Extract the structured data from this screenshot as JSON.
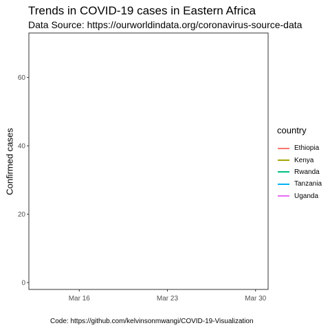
{
  "chart_data": {
    "type": "line",
    "title": "Trends in COVID-19 cases in Eastern Africa",
    "subtitle": "Data Source: https://ourworldindata.org/coronavirus-source-data",
    "xlabel": "",
    "ylabel": "Confirmed cases",
    "caption": "Code: https://github.com/kelvinsonmwangi/COVID-19-Visualization",
    "legend_title": "country",
    "legend_position": "right",
    "grid": false,
    "xlim": [
      "2020-03-12",
      "2020-03-31"
    ],
    "ylim": [
      -2,
      73
    ],
    "x_ticks": [
      {
        "date": "2020-03-16",
        "label": "Mar 16"
      },
      {
        "date": "2020-03-23",
        "label": "Mar 23"
      },
      {
        "date": "2020-03-30",
        "label": "Mar 30"
      }
    ],
    "y_ticks": [
      0,
      20,
      40,
      60
    ],
    "series": [
      {
        "name": "Ethiopia",
        "color": "#F8766D",
        "values": []
      },
      {
        "name": "Kenya",
        "color": "#A3A500",
        "values": []
      },
      {
        "name": "Rwanda",
        "color": "#00BF7D",
        "values": []
      },
      {
        "name": "Tanzania",
        "color": "#00B0F6",
        "values": []
      },
      {
        "name": "Uganda",
        "color": "#E76BF3",
        "values": []
      }
    ]
  }
}
